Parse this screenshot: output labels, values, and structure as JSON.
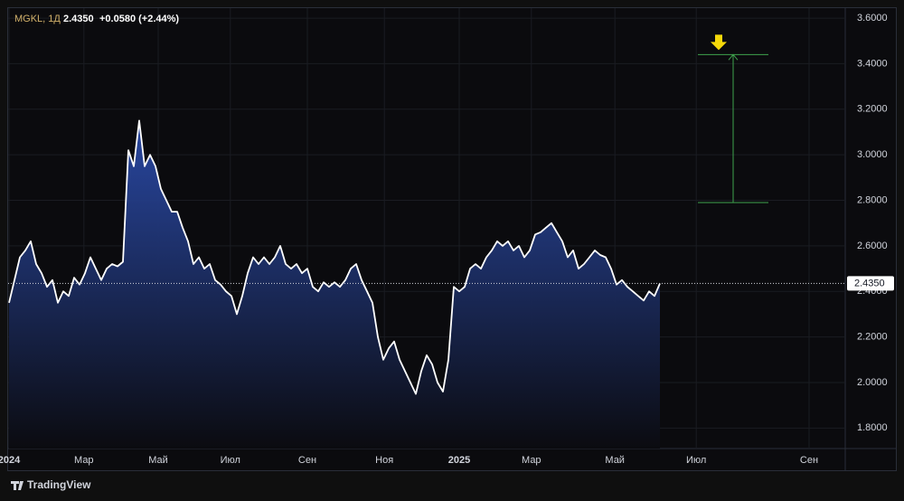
{
  "chart_data": {
    "type": "area",
    "symbol": "MGKL, 1Д",
    "change": "+0.0580 (+2.44%)",
    "brand": "TradingView",
    "line_color": "#ffffff",
    "fill_color": "#2a4aa8",
    "values": [
      2.35,
      2.45,
      2.55,
      2.58,
      2.62,
      2.52,
      2.48,
      2.42,
      2.45,
      2.35,
      2.4,
      2.38,
      2.46,
      2.43,
      2.48,
      2.55,
      2.5,
      2.45,
      2.5,
      2.52,
      2.51,
      2.53,
      3.02,
      2.95,
      3.15,
      2.95,
      3.0,
      2.95,
      2.85,
      2.8,
      2.75,
      2.75,
      2.68,
      2.62,
      2.52,
      2.55,
      2.5,
      2.52,
      2.45,
      2.43,
      2.4,
      2.38,
      2.3,
      2.38,
      2.48,
      2.55,
      2.52,
      2.55,
      2.52,
      2.55,
      2.6,
      2.52,
      2.5,
      2.52,
      2.48,
      2.5,
      2.42,
      2.4,
      2.44,
      2.42,
      2.44,
      2.42,
      2.45,
      2.5,
      2.52,
      2.45,
      2.4,
      2.35,
      2.2,
      2.1,
      2.15,
      2.18,
      2.1,
      2.05,
      2.0,
      1.95,
      2.05,
      2.12,
      2.08,
      2.0,
      1.96,
      2.1,
      2.42,
      2.4,
      2.42,
      2.5,
      2.52,
      2.5,
      2.55,
      2.58,
      2.62,
      2.6,
      2.62,
      2.58,
      2.6,
      2.55,
      2.58,
      2.65,
      2.66,
      2.68,
      2.7,
      2.66,
      2.62,
      2.55,
      2.58,
      2.5,
      2.52,
      2.55,
      2.58,
      2.56,
      2.55,
      2.5,
      2.43,
      2.45,
      2.42,
      2.4,
      2.38,
      2.36,
      2.4,
      2.38,
      2.435
    ],
    "xlim": [
      0,
      154
    ],
    "xticks": [
      {
        "value": 0,
        "label": "2024"
      },
      {
        "value": 13.8,
        "label": "Мар"
      },
      {
        "value": 27.5,
        "label": "Май"
      },
      {
        "value": 40.8,
        "label": "Июл"
      },
      {
        "value": 55,
        "label": "Сен"
      },
      {
        "value": 69.2,
        "label": "Ноя"
      },
      {
        "value": 83,
        "label": "2025"
      },
      {
        "value": 96.3,
        "label": "Мар"
      },
      {
        "value": 111.7,
        "label": "Май"
      },
      {
        "value": 126.7,
        "label": "Июл"
      },
      {
        "value": 147.5,
        "label": "Сен"
      }
    ],
    "ylim": [
      1.71,
      3.64
    ],
    "yticks": [
      {
        "value": 1.8,
        "label": "1.8000"
      },
      {
        "value": 2.0,
        "label": "2.0000"
      },
      {
        "value": 2.2,
        "label": "2.2000"
      },
      {
        "value": 2.4,
        "label": "2.4000"
      },
      {
        "value": 2.6,
        "label": "2.6000"
      },
      {
        "value": 2.8,
        "label": "2.8000"
      },
      {
        "value": 3.0,
        "label": "3.0000"
      },
      {
        "value": 3.2,
        "label": "3.2000"
      },
      {
        "value": 3.4,
        "label": "3.4000"
      },
      {
        "value": 3.6,
        "label": "3.6000"
      }
    ],
    "grid": true,
    "price_line": {
      "value": 2.435,
      "label": "2.4350"
    },
    "measure": {
      "start": 2.79,
      "end": 3.44,
      "color": "#3fa34d"
    }
  }
}
